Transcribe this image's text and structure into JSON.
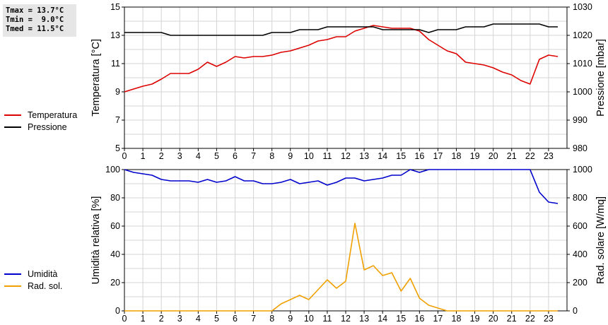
{
  "stats": {
    "tmax": "Tmax = 13.7°C",
    "tmin": "Tmin =  9.0°C",
    "tmed": "Tmed = 11.5°C"
  },
  "chart_data": [
    {
      "type": "line",
      "x_ticks": [
        "0",
        "1",
        "2",
        "3",
        "4",
        "5",
        "6",
        "7",
        "8",
        "9",
        "10",
        "11",
        "12",
        "13",
        "14",
        "15",
        "16",
        "17",
        "18",
        "19",
        "20",
        "21",
        "22",
        "23"
      ],
      "xlim": [
        0,
        24
      ],
      "grid": true,
      "legend_position": "left",
      "left_axis": {
        "label": "Temperatura [°C]",
        "ylim": [
          5,
          15
        ],
        "ticks": [
          "5",
          "7",
          "9",
          "11",
          "13",
          "15"
        ]
      },
      "right_axis": {
        "label": "Pressione [mbar]",
        "ylim": [
          980,
          1030
        ],
        "ticks": [
          "980",
          "990",
          "1000",
          "1010",
          "1020",
          "1030"
        ]
      },
      "series": [
        {
          "name": "Temperatura",
          "axis": "left",
          "color": "#dd0000",
          "x": [
            0,
            0.5,
            1,
            1.5,
            2,
            2.5,
            3,
            3.5,
            4,
            4.5,
            5,
            5.5,
            6,
            6.5,
            7,
            7.5,
            8,
            8.5,
            9,
            9.5,
            10,
            10.5,
            11,
            11.5,
            12,
            12.5,
            13,
            13.5,
            14,
            14.5,
            15,
            15.5,
            16,
            16.5,
            17,
            17.5,
            18,
            18.5,
            19,
            19.5,
            20,
            20.5,
            21,
            21.5,
            22,
            22.5,
            23,
            23.5
          ],
          "y": [
            9.0,
            9.2,
            9.4,
            9.55,
            9.9,
            10.3,
            10.3,
            10.3,
            10.6,
            11.1,
            10.8,
            11.1,
            11.5,
            11.4,
            11.5,
            11.5,
            11.6,
            11.8,
            11.9,
            12.1,
            12.3,
            12.6,
            12.7,
            12.9,
            12.9,
            13.3,
            13.5,
            13.7,
            13.6,
            13.5,
            13.5,
            13.5,
            13.3,
            12.7,
            12.3,
            11.9,
            11.7,
            11.1,
            11.0,
            10.9,
            10.7,
            10.4,
            10.2,
            9.8,
            9.55,
            11.3,
            11.6,
            11.5
          ]
        },
        {
          "name": "Pressione",
          "axis": "right",
          "color": "#000000",
          "x": [
            0,
            0.5,
            1,
            1.5,
            2,
            2.5,
            3,
            3.5,
            4,
            4.5,
            5,
            5.5,
            6,
            6.5,
            7,
            7.5,
            8,
            8.5,
            9,
            9.5,
            10,
            10.5,
            11,
            11.5,
            12,
            12.5,
            13,
            13.5,
            14,
            14.5,
            15,
            15.5,
            16,
            16.5,
            17,
            17.5,
            18,
            18.5,
            19,
            19.5,
            20,
            20.5,
            21,
            21.5,
            22,
            22.5,
            23,
            23.5
          ],
          "y": [
            1021,
            1021,
            1021,
            1021,
            1021,
            1020,
            1020,
            1020,
            1020,
            1020,
            1020,
            1020,
            1020,
            1020,
            1020,
            1020,
            1021,
            1021,
            1021,
            1022,
            1022,
            1022,
            1023,
            1023,
            1023,
            1023,
            1023,
            1023,
            1022,
            1022,
            1022,
            1022,
            1022,
            1021,
            1022,
            1022,
            1022,
            1023,
            1023,
            1023,
            1024,
            1024,
            1024,
            1024,
            1024,
            1024,
            1023,
            1023
          ]
        }
      ]
    },
    {
      "type": "line",
      "x_ticks": [
        "0",
        "1",
        "2",
        "3",
        "4",
        "5",
        "6",
        "7",
        "8",
        "9",
        "10",
        "11",
        "12",
        "13",
        "14",
        "15",
        "16",
        "17",
        "18",
        "19",
        "20",
        "21",
        "22",
        "23"
      ],
      "xlim": [
        0,
        24
      ],
      "grid": true,
      "legend_position": "left",
      "left_axis": {
        "label": "Umidità relativa [%]",
        "ylim": [
          0,
          100
        ],
        "ticks": [
          "0",
          "20",
          "40",
          "60",
          "80",
          "100"
        ]
      },
      "right_axis": {
        "label": "Rad. solare [W/mq]",
        "ylim": [
          0,
          1000
        ],
        "ticks": [
          "0",
          "200",
          "400",
          "600",
          "800",
          "1000"
        ]
      },
      "series": [
        {
          "name": "Umidità",
          "axis": "left",
          "color": "#0000cc",
          "x": [
            0,
            0.5,
            1,
            1.5,
            2,
            2.5,
            3,
            3.5,
            4,
            4.5,
            5,
            5.5,
            6,
            6.5,
            7,
            7.5,
            8,
            8.5,
            9,
            9.5,
            10,
            10.5,
            11,
            11.5,
            12,
            12.5,
            13,
            13.5,
            14,
            14.5,
            15,
            15.5,
            16,
            16.5,
            17,
            17.5,
            18,
            18.5,
            19,
            19.5,
            20,
            20.5,
            21,
            21.5,
            22,
            22.5,
            23,
            23.5
          ],
          "y": [
            100,
            98,
            97,
            96,
            93,
            92,
            92,
            92,
            91,
            93,
            91,
            92,
            95,
            92,
            92,
            90,
            90,
            91,
            93,
            90,
            91,
            92,
            89,
            91,
            94,
            94,
            92,
            93,
            94,
            96,
            96,
            100,
            98,
            100,
            100,
            100,
            100,
            100,
            100,
            100,
            100,
            100,
            100,
            100,
            100,
            84,
            77,
            76
          ]
        },
        {
          "name": "Rad. sol.",
          "axis": "right",
          "color": "#f0a000",
          "x": [
            0,
            0.5,
            1,
            1.5,
            2,
            2.5,
            3,
            3.5,
            4,
            4.5,
            5,
            5.5,
            6,
            6.5,
            7,
            7.5,
            8,
            8.5,
            9,
            9.5,
            10,
            10.5,
            11,
            11.5,
            12,
            12.5,
            13,
            13.5,
            14,
            14.5,
            15,
            15.5,
            16,
            16.5,
            17,
            17.5,
            18,
            18.5,
            19,
            19.5,
            20,
            20.5,
            21,
            21.5,
            22,
            22.5,
            23,
            23.5
          ],
          "y": [
            0,
            0,
            0,
            0,
            0,
            0,
            0,
            0,
            0,
            0,
            0,
            0,
            0,
            0,
            0,
            0,
            0,
            50,
            80,
            110,
            80,
            150,
            220,
            160,
            210,
            620,
            290,
            320,
            250,
            270,
            140,
            230,
            90,
            40,
            20,
            0,
            0,
            0,
            0,
            0,
            0,
            0,
            0,
            0,
            0,
            0,
            0,
            0
          ]
        }
      ]
    }
  ]
}
